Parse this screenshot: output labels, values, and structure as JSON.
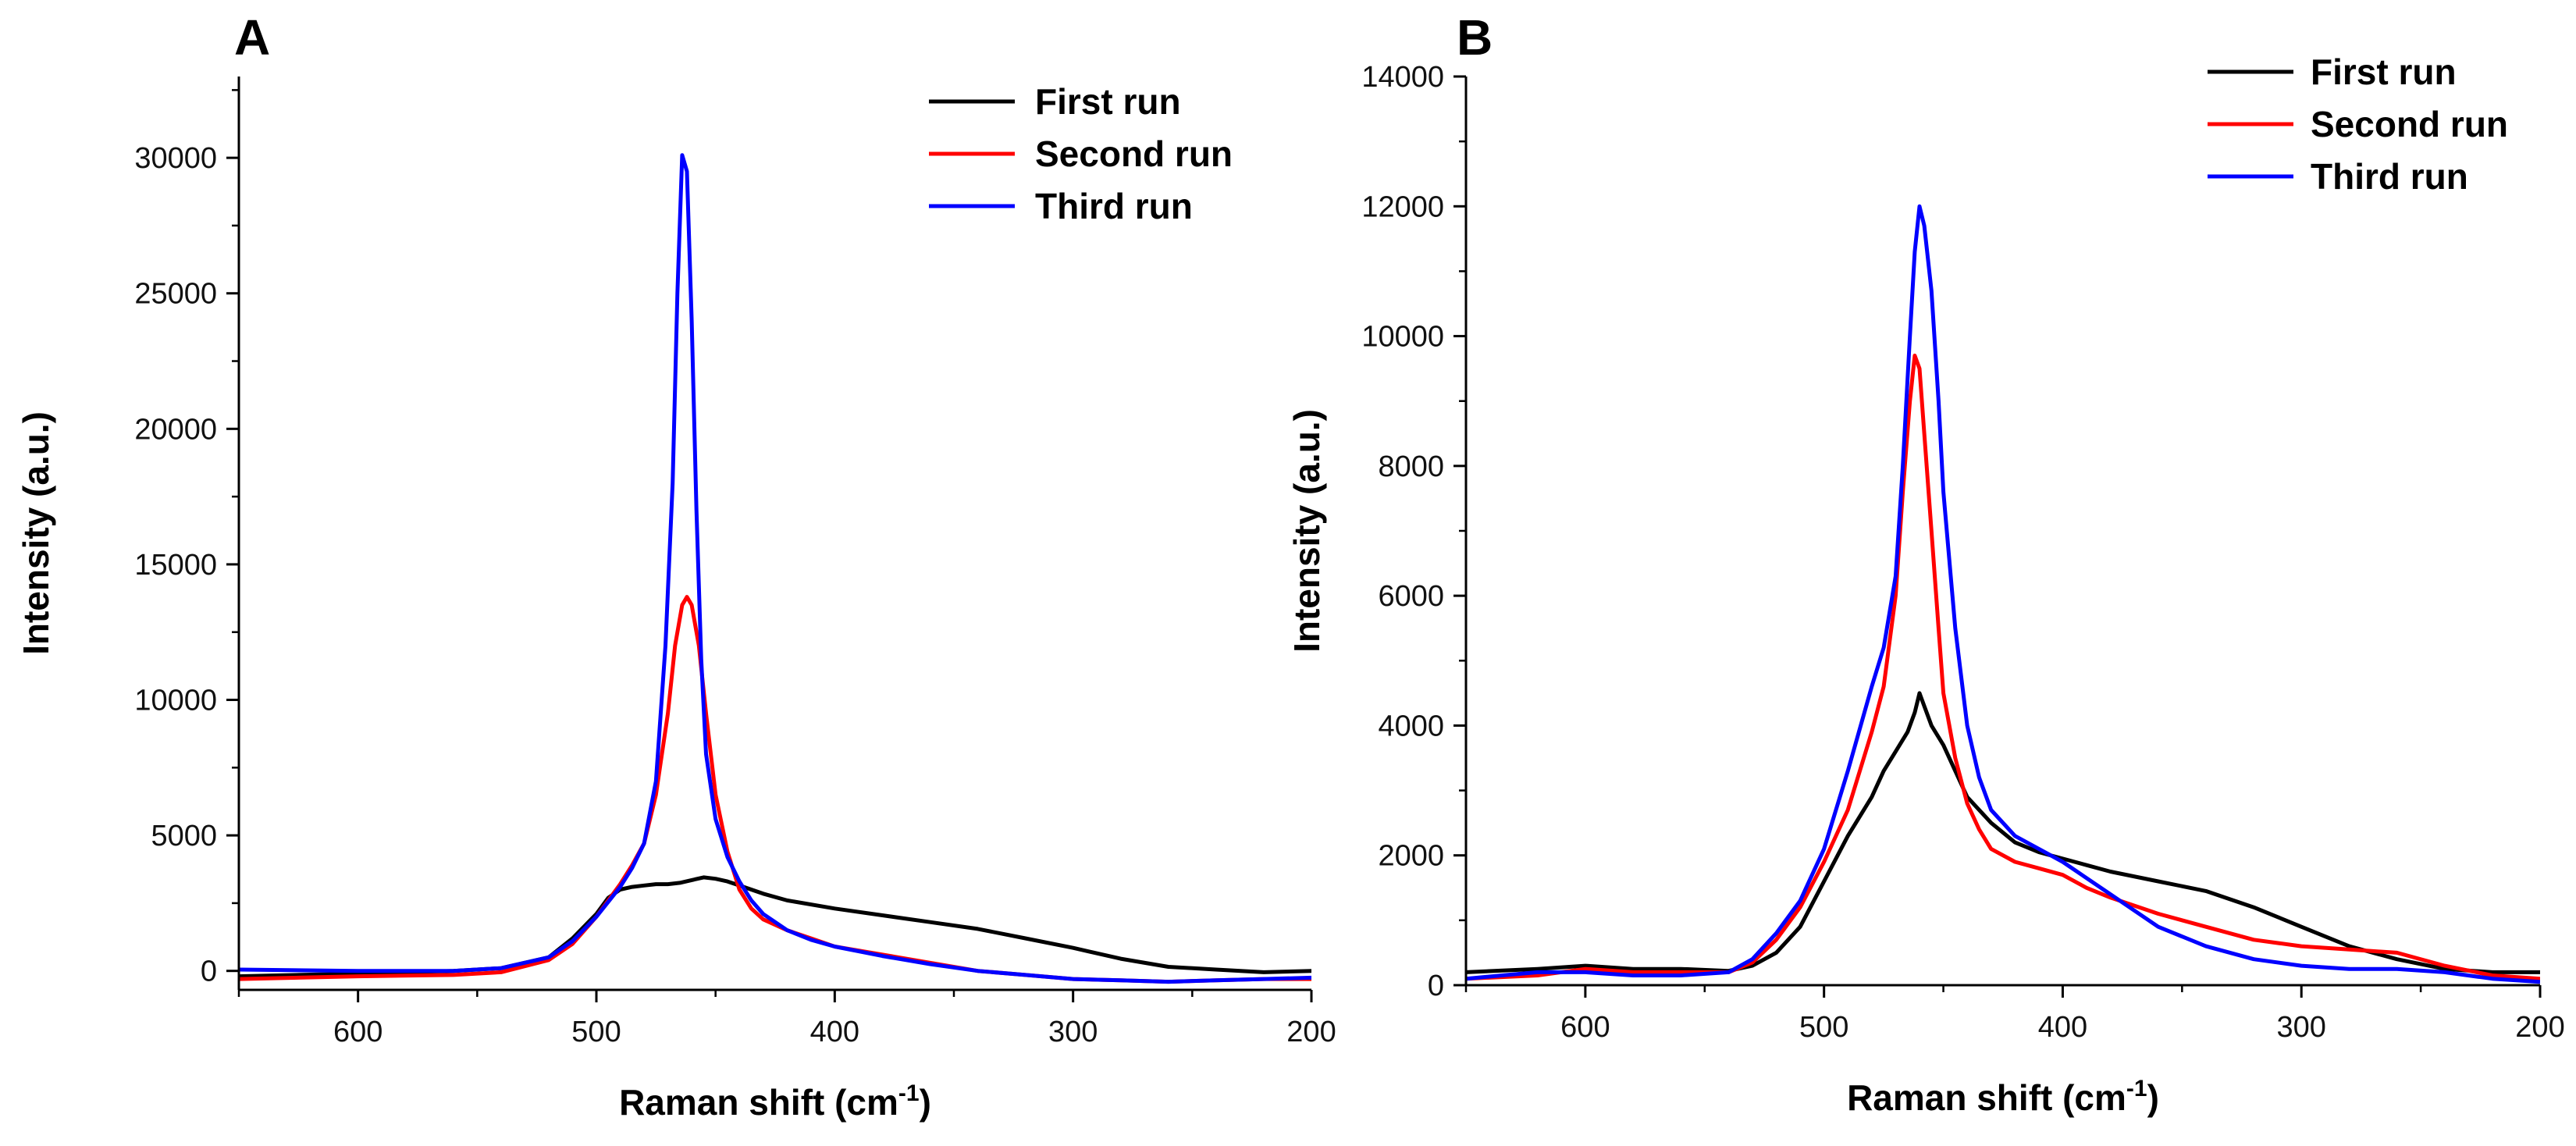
{
  "chart_data": [
    {
      "panel_label": "A",
      "type": "line",
      "title": "",
      "xlabel": "Raman shift (cm",
      "xlabel_sup": "-1",
      "xlabel_end": ")",
      "ylabel": "Intensity (a.u.)",
      "xlim": [
        650,
        200
      ],
      "ylim": [
        -700,
        33000
      ],
      "xticks": [
        600,
        500,
        400,
        300,
        200
      ],
      "yticks": [
        0,
        5000,
        10000,
        15000,
        20000,
        25000,
        30000
      ],
      "xtick_labels": [
        "600",
        "500",
        "400",
        "300",
        "200"
      ],
      "ytick_labels": [
        "0",
        "5000",
        "10000",
        "15000",
        "20000",
        "25000",
        "30000"
      ],
      "legend_position": "top-right",
      "series": [
        {
          "name": "First run",
          "color": "#000000",
          "x": [
            650,
            600,
            560,
            540,
            520,
            510,
            500,
            495,
            490,
            485,
            480,
            475,
            470,
            465,
            460,
            455,
            450,
            445,
            440,
            430,
            420,
            400,
            380,
            360,
            340,
            320,
            300,
            280,
            260,
            240,
            220,
            200
          ],
          "y": [
            -200,
            -100,
            0,
            100,
            500,
            1200,
            2100,
            2700,
            3000,
            3100,
            3150,
            3200,
            3200,
            3250,
            3350,
            3450,
            3400,
            3300,
            3150,
            2850,
            2600,
            2300,
            2050,
            1800,
            1550,
            1200,
            850,
            450,
            150,
            50,
            -50,
            0
          ]
        },
        {
          "name": "Second run",
          "color": "#ff0000",
          "x": [
            650,
            600,
            560,
            540,
            520,
            510,
            500,
            490,
            485,
            480,
            475,
            470,
            467,
            464,
            462,
            460,
            457,
            454,
            450,
            445,
            440,
            435,
            430,
            420,
            410,
            400,
            380,
            360,
            340,
            320,
            300,
            280,
            260,
            240,
            220,
            200
          ],
          "y": [
            -300,
            -200,
            -150,
            -50,
            400,
            1000,
            2000,
            3200,
            3900,
            4700,
            6500,
            9500,
            12000,
            13500,
            13800,
            13500,
            12000,
            9500,
            6500,
            4400,
            3000,
            2300,
            1900,
            1500,
            1200,
            900,
            600,
            300,
            0,
            -150,
            -300,
            -350,
            -400,
            -350,
            -300,
            -300
          ]
        },
        {
          "name": "Third run",
          "color": "#0000ff",
          "x": [
            650,
            600,
            560,
            540,
            520,
            510,
            500,
            490,
            485,
            480,
            475,
            471,
            468,
            466,
            464,
            462,
            460,
            458,
            456,
            454,
            450,
            445,
            440,
            435,
            430,
            420,
            410,
            400,
            380,
            360,
            340,
            320,
            300,
            280,
            260,
            240,
            220,
            200
          ],
          "y": [
            50,
            0,
            0,
            100,
            500,
            1100,
            2000,
            3100,
            3800,
            4700,
            7000,
            12000,
            18000,
            25000,
            30100,
            29500,
            24000,
            17000,
            11500,
            8000,
            5600,
            4200,
            3300,
            2600,
            2100,
            1500,
            1150,
            900,
            550,
            250,
            0,
            -150,
            -300,
            -350,
            -400,
            -350,
            -300,
            -250
          ]
        }
      ]
    },
    {
      "panel_label": "B",
      "type": "line",
      "title": "",
      "xlabel": "Raman shift (cm",
      "xlabel_sup": "-1",
      "xlabel_end": ")",
      "ylabel": "Intensity (a.u.)",
      "xlim": [
        650,
        200
      ],
      "ylim": [
        0,
        14000
      ],
      "xticks": [
        600,
        500,
        400,
        300,
        200
      ],
      "yticks": [
        0,
        2000,
        4000,
        6000,
        8000,
        10000,
        12000,
        14000
      ],
      "xtick_labels": [
        "600",
        "500",
        "400",
        "300",
        "200"
      ],
      "ytick_labels": [
        "0",
        "2000",
        "4000",
        "6000",
        "8000",
        "10000",
        "12000",
        "14000"
      ],
      "legend_position": "top-right",
      "series": [
        {
          "name": "First run",
          "color": "#000000",
          "x": [
            650,
            620,
            600,
            580,
            560,
            540,
            530,
            520,
            510,
            500,
            490,
            480,
            475,
            470,
            465,
            462,
            460,
            458,
            455,
            450,
            445,
            440,
            430,
            420,
            410,
            400,
            390,
            380,
            360,
            340,
            320,
            300,
            280,
            260,
            240,
            220,
            200
          ],
          "y": [
            200,
            250,
            300,
            250,
            250,
            220,
            300,
            500,
            900,
            1600,
            2300,
            2900,
            3300,
            3600,
            3900,
            4200,
            4500,
            4300,
            4000,
            3700,
            3300,
            2900,
            2500,
            2200,
            2050,
            1950,
            1850,
            1750,
            1600,
            1450,
            1200,
            900,
            600,
            400,
            250,
            200,
            200
          ]
        },
        {
          "name": "Second run",
          "color": "#ff0000",
          "x": [
            650,
            620,
            600,
            580,
            560,
            540,
            530,
            520,
            510,
            500,
            490,
            480,
            475,
            470,
            467,
            464,
            462,
            460,
            458,
            455,
            452,
            450,
            445,
            440,
            435,
            430,
            420,
            410,
            400,
            390,
            380,
            360,
            340,
            320,
            300,
            280,
            260,
            240,
            220,
            200
          ],
          "y": [
            100,
            150,
            250,
            200,
            200,
            200,
            350,
            700,
            1200,
            1900,
            2700,
            3900,
            4600,
            6000,
            7600,
            9000,
            9700,
            9500,
            8500,
            7000,
            5500,
            4500,
            3500,
            2800,
            2400,
            2100,
            1900,
            1800,
            1700,
            1500,
            1350,
            1100,
            900,
            700,
            600,
            550,
            500,
            300,
            150,
            100
          ]
        },
        {
          "name": "Third run",
          "color": "#0000ff",
          "x": [
            650,
            620,
            600,
            580,
            560,
            540,
            530,
            520,
            510,
            500,
            490,
            480,
            475,
            470,
            467,
            464,
            462,
            460,
            458,
            455,
            452,
            450,
            445,
            440,
            435,
            430,
            420,
            410,
            400,
            390,
            380,
            360,
            340,
            320,
            300,
            280,
            260,
            240,
            220,
            200
          ],
          "y": [
            100,
            200,
            200,
            150,
            150,
            200,
            400,
            800,
            1300,
            2100,
            3300,
            4600,
            5200,
            6300,
            8000,
            10000,
            11300,
            12000,
            11700,
            10700,
            9000,
            7600,
            5500,
            4000,
            3200,
            2700,
            2300,
            2100,
            1900,
            1650,
            1400,
            900,
            600,
            400,
            300,
            250,
            250,
            200,
            100,
            50
          ]
        }
      ]
    }
  ]
}
